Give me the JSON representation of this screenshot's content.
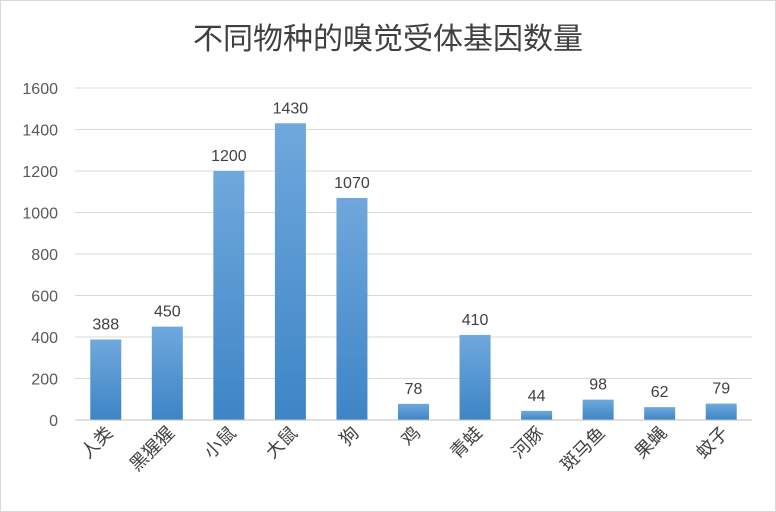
{
  "chart_data": {
    "type": "bar",
    "title": "不同物种的嗅觉受体基因数量",
    "xlabel": "",
    "ylabel": "",
    "categories": [
      "人类",
      "黑猩猩",
      "小鼠",
      "大鼠",
      "狗",
      "鸡",
      "青蛙",
      "河豚",
      "斑马鱼",
      "果蝇",
      "蚊子"
    ],
    "values": [
      388,
      450,
      1200,
      1430,
      1070,
      78,
      410,
      44,
      98,
      62,
      79
    ],
    "ylim": [
      0,
      1600
    ],
    "yticks": [
      0,
      200,
      400,
      600,
      800,
      1000,
      1200,
      1400,
      1600
    ],
    "grid": true,
    "legend": "none",
    "colors": {
      "bar_top": "#6fa8dc",
      "bar_bottom": "#3d85c6",
      "grid": "#d9d9d9",
      "axis": "#bfbfbf"
    }
  }
}
